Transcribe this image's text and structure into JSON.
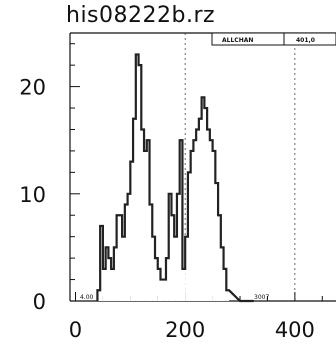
{
  "chart_data": {
    "type": "histogram",
    "title": "his08222b.rz",
    "stat_box": {
      "label": "ALLCHAN",
      "value": "401,0"
    },
    "bottom_annotations": [
      "4.00",
      "3007"
    ],
    "x": {
      "ticks": [
        0,
        200,
        400
      ],
      "tick_labels": [
        "0",
        "200",
        "400"
      ],
      "range": [
        -10,
        475
      ],
      "reference_lines": [
        200,
        400
      ]
    },
    "y": {
      "ticks": [
        0,
        10,
        20
      ],
      "tick_labels": [
        "0",
        "10",
        "20"
      ],
      "range": [
        0,
        25
      ]
    },
    "grid": false,
    "bin_width": 5,
    "bins": [
      [
        40,
        1
      ],
      [
        45,
        7
      ],
      [
        50,
        3
      ],
      [
        55,
        5
      ],
      [
        60,
        4
      ],
      [
        65,
        3
      ],
      [
        70,
        5
      ],
      [
        75,
        8
      ],
      [
        80,
        8
      ],
      [
        85,
        6
      ],
      [
        90,
        9
      ],
      [
        95,
        10
      ],
      [
        100,
        13
      ],
      [
        105,
        17
      ],
      [
        110,
        23
      ],
      [
        115,
        22
      ],
      [
        120,
        16
      ],
      [
        125,
        14
      ],
      [
        130,
        15
      ],
      [
        135,
        9
      ],
      [
        140,
        6
      ],
      [
        145,
        4
      ],
      [
        150,
        3
      ],
      [
        155,
        2
      ],
      [
        160,
        2
      ],
      [
        165,
        4
      ],
      [
        170,
        10
      ],
      [
        175,
        8
      ],
      [
        180,
        6
      ],
      [
        185,
        10
      ],
      [
        190,
        15
      ],
      [
        195,
        3
      ],
      [
        200,
        6
      ],
      [
        205,
        12
      ],
      [
        210,
        14
      ],
      [
        215,
        15
      ],
      [
        220,
        16
      ],
      [
        225,
        17
      ],
      [
        230,
        19
      ],
      [
        235,
        18
      ],
      [
        240,
        16
      ],
      [
        245,
        15
      ],
      [
        250,
        14
      ],
      [
        255,
        11
      ],
      [
        260,
        8
      ],
      [
        265,
        5
      ],
      [
        270,
        3
      ],
      [
        275,
        1
      ],
      [
        300,
        0
      ],
      [
        320,
        0
      ]
    ]
  }
}
